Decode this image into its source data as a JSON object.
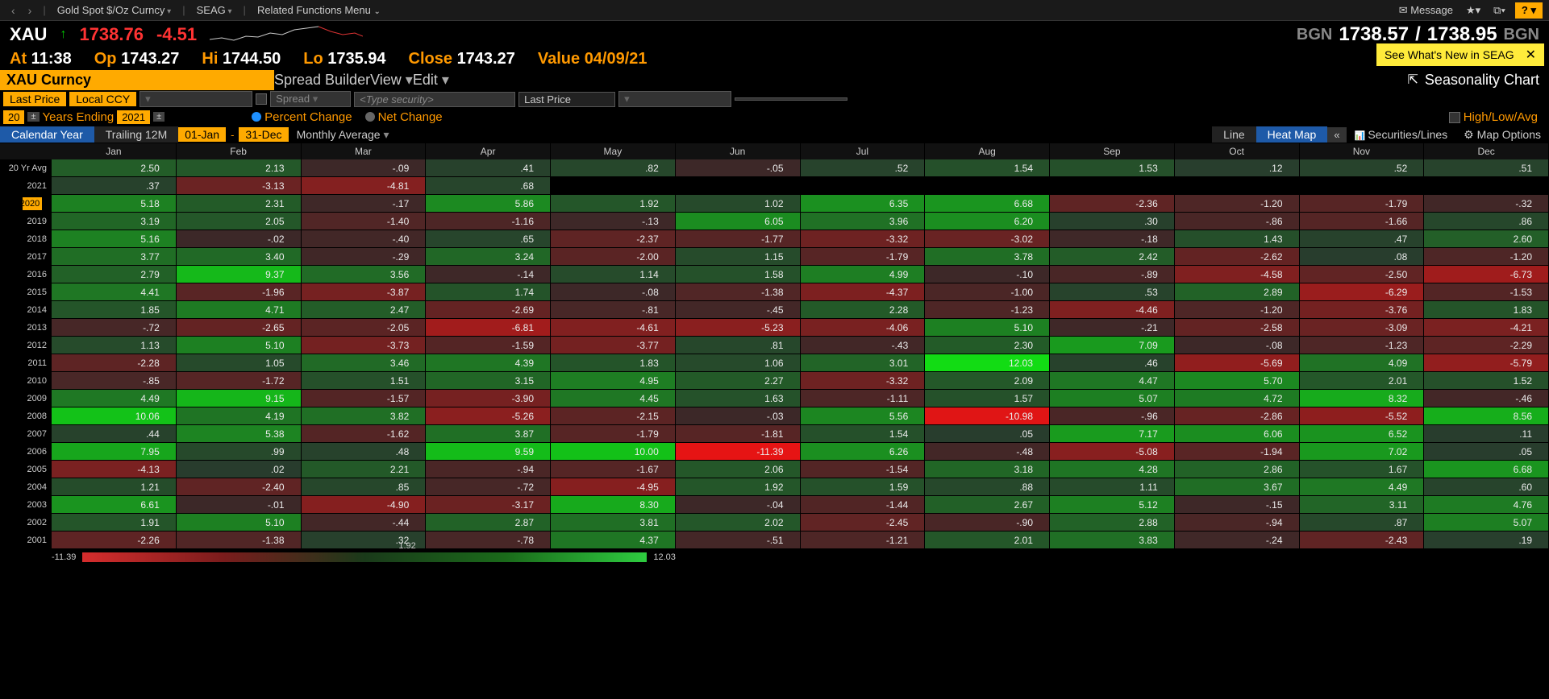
{
  "toolbar": {
    "security_menu": "Gold Spot $/Oz Curncy",
    "function": "SEAG",
    "related_menu": "Related Functions Menu",
    "message": "Message",
    "help_label": "?"
  },
  "whatsnew": {
    "text": "See What's New in SEAG"
  },
  "quote": {
    "ticker": "XAU",
    "last": "1738.76",
    "change": "-4.51",
    "bgn_label": "BGN",
    "bid": "1738.57",
    "ask": "1738.95",
    "at_label": "At",
    "at_val": "11:38",
    "op_label": "Op",
    "op_val": "1743.27",
    "hi_label": "Hi",
    "hi_val": "1744.50",
    "lo_label": "Lo",
    "lo_val": "1735.94",
    "close_label": "Close",
    "close_val": "1743.27",
    "value_label": "Value",
    "value_val": "04/09/21"
  },
  "row3": {
    "security": "XAU Curncy",
    "spread_builder": "Spread Builder",
    "view": "View",
    "edit": "Edit",
    "seasonality_chart": "Seasonality Chart"
  },
  "row4": {
    "last_price1": "Last Price",
    "local_ccy": "Local CCY",
    "spread": "Spread",
    "type_sec_ph": "<Type security>",
    "last_price2": "Last Price"
  },
  "row5": {
    "years_num": "20",
    "years_label": "Years Ending",
    "year_val": "2021",
    "percent_change": "Percent Change",
    "net_change": "Net Change",
    "high_low_avg": "High/Low/Avg"
  },
  "row6": {
    "calendar_year": "Calendar Year",
    "trailing_12m": "Trailing 12M",
    "date_from": "01-Jan",
    "date_to": "31-Dec",
    "monthly_avg": "Monthly Average",
    "line_tab": "Line",
    "heatmap_tab": "Heat Map",
    "securities_lines": "Securities/Lines",
    "map_options": "Map Options"
  },
  "heatmap": {
    "months": [
      "Jan",
      "Feb",
      "Mar",
      "Apr",
      "May",
      "Jun",
      "Jul",
      "Aug",
      "Sep",
      "Oct",
      "Nov",
      "Dec"
    ],
    "row_labels": [
      "20 Yr Avg",
      "2021",
      "2020",
      "2019",
      "2018",
      "2017",
      "2016",
      "2015",
      "2014",
      "2013",
      "2012",
      "2011",
      "2010",
      "2009",
      "2008",
      "2007",
      "2006",
      "2005",
      "2004",
      "2003",
      "2002",
      "2001"
    ],
    "highlight_row_idx": 2,
    "highlight_label": "2020",
    "data": [
      [
        2.5,
        2.13,
        -0.09,
        0.41,
        0.82,
        -0.05,
        0.52,
        1.54,
        1.53,
        0.12,
        0.52,
        0.51
      ],
      [
        0.37,
        -3.13,
        -4.81,
        0.68,
        null,
        null,
        null,
        null,
        null,
        null,
        null,
        null
      ],
      [
        5.18,
        2.31,
        -0.17,
        5.86,
        1.92,
        1.02,
        6.35,
        6.68,
        -2.36,
        -1.2,
        -1.79,
        -0.32
      ],
      [
        3.19,
        2.05,
        -1.4,
        -1.16,
        -0.13,
        6.05,
        3.96,
        6.2,
        0.3,
        -0.86,
        -1.66,
        0.86
      ],
      [
        5.16,
        -0.02,
        -0.4,
        0.65,
        -2.37,
        -1.77,
        -3.32,
        -3.02,
        -0.18,
        1.43,
        0.47,
        2.6
      ],
      [
        3.77,
        3.4,
        -0.29,
        3.24,
        -2.0,
        1.15,
        -1.79,
        3.78,
        2.42,
        -2.62,
        0.08,
        -1.2
      ],
      [
        2.79,
        9.37,
        3.56,
        -0.14,
        1.14,
        1.58,
        4.99,
        -0.1,
        -0.89,
        -4.58,
        -2.5,
        -6.73
      ],
      [
        4.41,
        -1.96,
        -3.87,
        1.74,
        -0.08,
        -1.38,
        -4.37,
        -1.0,
        0.53,
        2.89,
        -6.29,
        -1.53
      ],
      [
        1.85,
        4.71,
        2.47,
        -2.69,
        -0.81,
        -0.45,
        2.28,
        -1.23,
        -4.46,
        -1.2,
        -3.76,
        1.83
      ],
      [
        -0.72,
        -2.65,
        -2.05,
        -6.81,
        -4.61,
        -5.23,
        -4.06,
        5.1,
        -0.21,
        -2.58,
        -3.09,
        -4.21
      ],
      [
        1.13,
        5.1,
        -3.73,
        -1.59,
        -3.77,
        0.81,
        -0.43,
        2.3,
        7.09,
        -0.08,
        -1.23,
        -2.29
      ],
      [
        -2.28,
        1.05,
        3.46,
        4.39,
        1.83,
        1.06,
        3.01,
        12.03,
        0.46,
        -5.69,
        4.09,
        -5.79
      ],
      [
        -0.85,
        -1.72,
        1.51,
        3.15,
        4.95,
        2.27,
        -3.32,
        2.09,
        4.47,
        5.7,
        2.01,
        1.52
      ],
      [
        4.49,
        9.15,
        -1.57,
        -3.9,
        4.45,
        1.63,
        -1.11,
        1.57,
        5.07,
        4.72,
        8.32,
        -0.46
      ],
      [
        10.06,
        4.19,
        3.82,
        -5.26,
        -2.15,
        -0.03,
        5.56,
        -10.98,
        -0.96,
        -2.86,
        -5.52,
        8.56
      ],
      [
        0.44,
        5.38,
        -1.62,
        3.87,
        -1.79,
        -1.81,
        1.54,
        0.05,
        7.17,
        6.06,
        6.52,
        0.11
      ],
      [
        7.95,
        0.99,
        0.48,
        9.59,
        10.0,
        -11.39,
        6.26,
        -0.48,
        -5.08,
        -1.94,
        7.02,
        0.05
      ],
      [
        -4.13,
        0.02,
        2.21,
        -0.94,
        -1.67,
        2.06,
        -1.54,
        3.18,
        4.28,
        2.86,
        1.67,
        6.68
      ],
      [
        1.21,
        -2.4,
        0.85,
        -0.72,
        -4.95,
        1.92,
        1.59,
        0.88,
        1.11,
        3.67,
        4.49,
        0.6
      ],
      [
        6.61,
        -0.01,
        -4.9,
        -3.17,
        8.3,
        -0.04,
        -1.44,
        2.67,
        5.12,
        -0.15,
        3.11,
        4.76
      ],
      [
        1.91,
        5.1,
        -0.44,
        2.87,
        3.81,
        2.02,
        -2.45,
        -0.9,
        2.88,
        -0.94,
        0.87,
        5.07
      ],
      [
        -2.26,
        -1.38,
        0.32,
        -0.78,
        4.37,
        -0.51,
        -1.21,
        2.01,
        3.83,
        -0.24,
        -2.43,
        0.19
      ]
    ],
    "legend_min": "-11.39",
    "legend_mid": "1.92",
    "legend_max": "12.03",
    "scale_min": -11.39,
    "scale_max": 12.03
  }
}
